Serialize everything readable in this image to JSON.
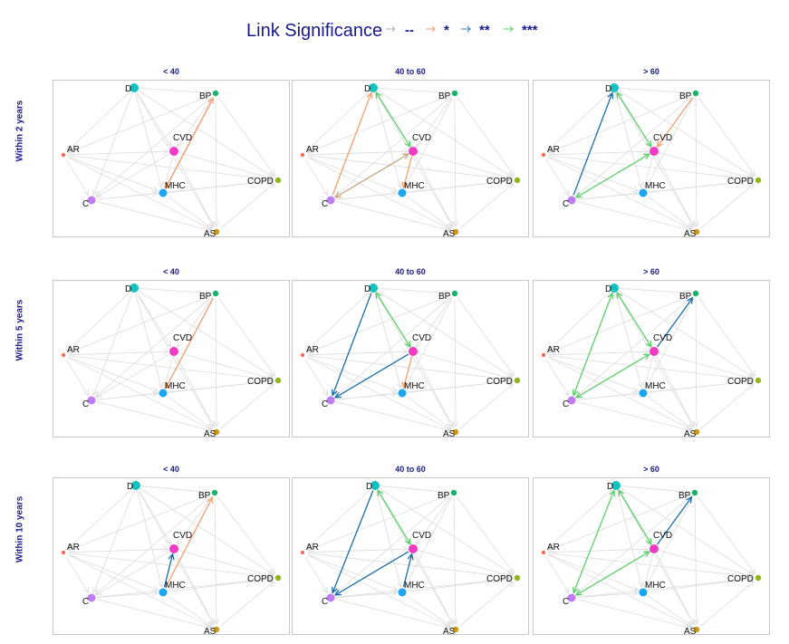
{
  "legend": {
    "title": "Link Significance",
    "items": [
      {
        "symbol": "--",
        "color": "#b0b0b0"
      },
      {
        "symbol": "*",
        "color": "#f0a070"
      },
      {
        "symbol": "**",
        "color": "#2f7fbf"
      },
      {
        "symbol": "***",
        "color": "#5ccf6a"
      }
    ]
  },
  "columns": [
    "< 40",
    "40 to 60",
    "> 60"
  ],
  "rows": [
    "Within 2 years",
    "Within 5 years",
    "Within 10 years"
  ],
  "nodes": [
    {
      "id": "D",
      "label": "D",
      "color": "#14c1c1",
      "size": "large"
    },
    {
      "id": "BP",
      "label": "BP",
      "color": "#17b36b",
      "size": "small"
    },
    {
      "id": "AR",
      "label": "AR",
      "color": "#f36b5a",
      "size": "tiny"
    },
    {
      "id": "CVD",
      "label": "CVD",
      "color": "#f03cc4",
      "size": "large"
    },
    {
      "id": "COPD",
      "label": "COPD",
      "color": "#8fb51a",
      "size": "small"
    },
    {
      "id": "C",
      "label": "C",
      "color": "#c07cf4",
      "size": "medium"
    },
    {
      "id": "MHC",
      "label": "MHC",
      "color": "#1aa6f0",
      "size": "medium"
    },
    {
      "id": "AS",
      "label": "AS",
      "color": "#d19a10",
      "size": "small"
    }
  ],
  "edge_colors": {
    "--": "#dcdcdc",
    "*": "#f0a070",
    "**": "#1a6ea8",
    "***": "#5ccf6a",
    "mixed": "#c4a882"
  },
  "panels": [
    {
      "row": 0,
      "col": 0,
      "significant_edges": [
        {
          "from": "MHC",
          "to": "BP",
          "level": "*"
        },
        {
          "from": "BP",
          "to": "MHC",
          "level": "*"
        }
      ]
    },
    {
      "row": 0,
      "col": 1,
      "significant_edges": [
        {
          "from": "D",
          "to": "CVD",
          "level": "***",
          "bidirectional": true
        },
        {
          "from": "C",
          "to": "D",
          "level": "*"
        },
        {
          "from": "C",
          "to": "CVD",
          "level": "mixed",
          "bidirectional": true
        },
        {
          "from": "CVD",
          "to": "MHC",
          "level": "*"
        }
      ]
    },
    {
      "row": 0,
      "col": 2,
      "significant_edges": [
        {
          "from": "C",
          "to": "D",
          "level": "**"
        },
        {
          "from": "D",
          "to": "CVD",
          "level": "***",
          "bidirectional": true
        },
        {
          "from": "C",
          "to": "CVD",
          "level": "***",
          "bidirectional": true
        },
        {
          "from": "BP",
          "to": "CVD",
          "level": "*"
        }
      ]
    },
    {
      "row": 1,
      "col": 0,
      "significant_edges": [
        {
          "from": "BP",
          "to": "MHC",
          "level": "*"
        }
      ]
    },
    {
      "row": 1,
      "col": 1,
      "significant_edges": [
        {
          "from": "D",
          "to": "C",
          "level": "**"
        },
        {
          "from": "CVD",
          "to": "C",
          "level": "**"
        },
        {
          "from": "D",
          "to": "CVD",
          "level": "***",
          "bidirectional": true
        },
        {
          "from": "CVD",
          "to": "MHC",
          "level": "*"
        }
      ]
    },
    {
      "row": 1,
      "col": 2,
      "significant_edges": [
        {
          "from": "D",
          "to": "C",
          "level": "***",
          "bidirectional": true
        },
        {
          "from": "D",
          "to": "CVD",
          "level": "***",
          "bidirectional": true
        },
        {
          "from": "CVD",
          "to": "C",
          "level": "***",
          "bidirectional": true
        },
        {
          "from": "CVD",
          "to": "BP",
          "level": "**"
        }
      ]
    },
    {
      "row": 2,
      "col": 0,
      "significant_edges": [
        {
          "from": "MHC",
          "to": "BP",
          "level": "*"
        },
        {
          "from": "MHC",
          "to": "CVD",
          "level": "**"
        }
      ]
    },
    {
      "row": 2,
      "col": 1,
      "significant_edges": [
        {
          "from": "D",
          "to": "C",
          "level": "**"
        },
        {
          "from": "CVD",
          "to": "C",
          "level": "**"
        },
        {
          "from": "D",
          "to": "CVD",
          "level": "***",
          "bidirectional": true
        },
        {
          "from": "MHC",
          "to": "CVD",
          "level": "**"
        }
      ]
    },
    {
      "row": 2,
      "col": 2,
      "significant_edges": [
        {
          "from": "D",
          "to": "C",
          "level": "***",
          "bidirectional": true
        },
        {
          "from": "D",
          "to": "CVD",
          "level": "***",
          "bidirectional": true
        },
        {
          "from": "CVD",
          "to": "C",
          "level": "***",
          "bidirectional": true
        },
        {
          "from": "CVD",
          "to": "BP",
          "level": "**"
        }
      ]
    }
  ]
}
